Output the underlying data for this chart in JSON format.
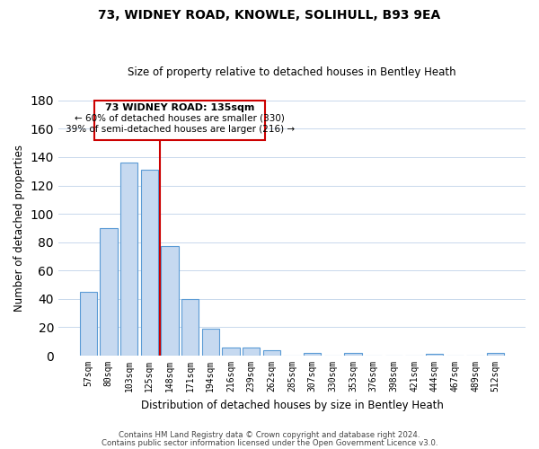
{
  "title": "73, WIDNEY ROAD, KNOWLE, SOLIHULL, B93 9EA",
  "subtitle": "Size of property relative to detached houses in Bentley Heath",
  "xlabel": "Distribution of detached houses by size in Bentley Heath",
  "ylabel": "Number of detached properties",
  "bar_labels": [
    "57sqm",
    "80sqm",
    "103sqm",
    "125sqm",
    "148sqm",
    "171sqm",
    "194sqm",
    "216sqm",
    "239sqm",
    "262sqm",
    "285sqm",
    "307sqm",
    "330sqm",
    "353sqm",
    "376sqm",
    "398sqm",
    "421sqm",
    "444sqm",
    "467sqm",
    "489sqm",
    "512sqm"
  ],
  "bar_values": [
    45,
    90,
    136,
    131,
    77,
    40,
    19,
    6,
    6,
    4,
    0,
    2,
    0,
    2,
    0,
    0,
    0,
    1,
    0,
    0,
    2
  ],
  "bar_color": "#c6d9f0",
  "bar_edge_color": "#5b9bd5",
  "vline_x": 3.5,
  "vline_color": "#cc0000",
  "ylim": [
    0,
    180
  ],
  "yticks": [
    0,
    20,
    40,
    60,
    80,
    100,
    120,
    140,
    160,
    180
  ],
  "annotation_title": "73 WIDNEY ROAD: 135sqm",
  "annotation_line1": "← 60% of detached houses are smaller (330)",
  "annotation_line2": "39% of semi-detached houses are larger (216) →",
  "footer1": "Contains HM Land Registry data © Crown copyright and database right 2024.",
  "footer2": "Contains public sector information licensed under the Open Government Licence v3.0.",
  "background_color": "#ffffff",
  "grid_color": "#c8d8ec"
}
